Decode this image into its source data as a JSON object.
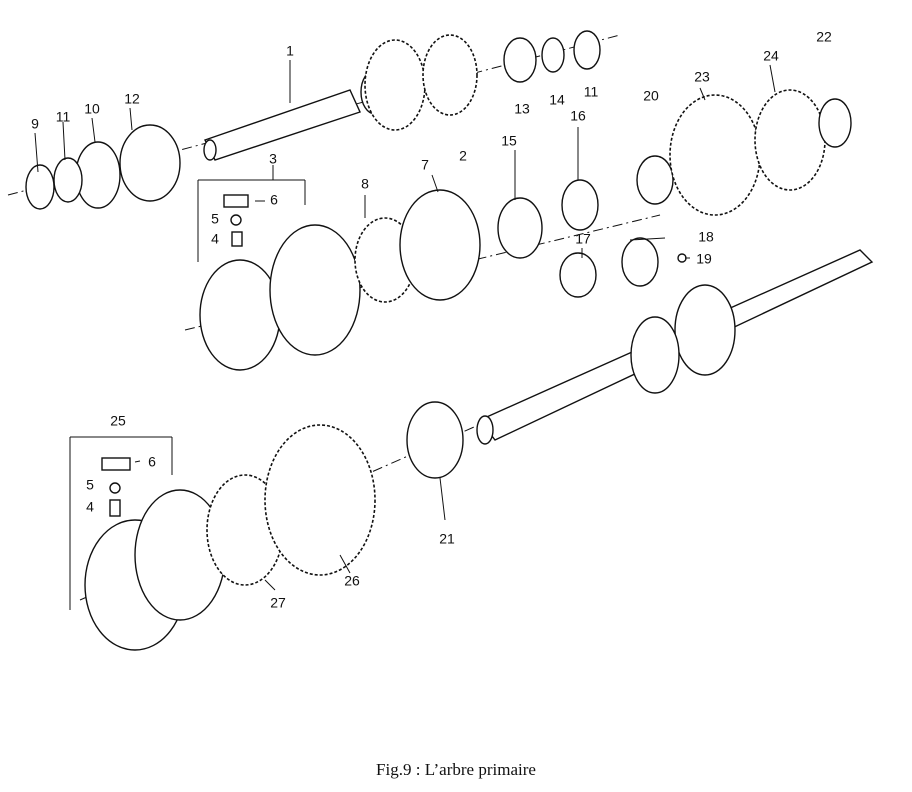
{
  "figure": {
    "caption": "Fig.9 : L’arbre primaire"
  },
  "callouts": [
    "1",
    "2",
    "3",
    "4",
    "5",
    "6",
    "7",
    "8",
    "9",
    "10",
    "11",
    "12",
    "13",
    "14",
    "11",
    "15",
    "16",
    "17",
    "18",
    "19",
    "20",
    "21",
    "22",
    "23",
    "24",
    "25",
    "6",
    "5",
    "4",
    "26",
    "27"
  ]
}
